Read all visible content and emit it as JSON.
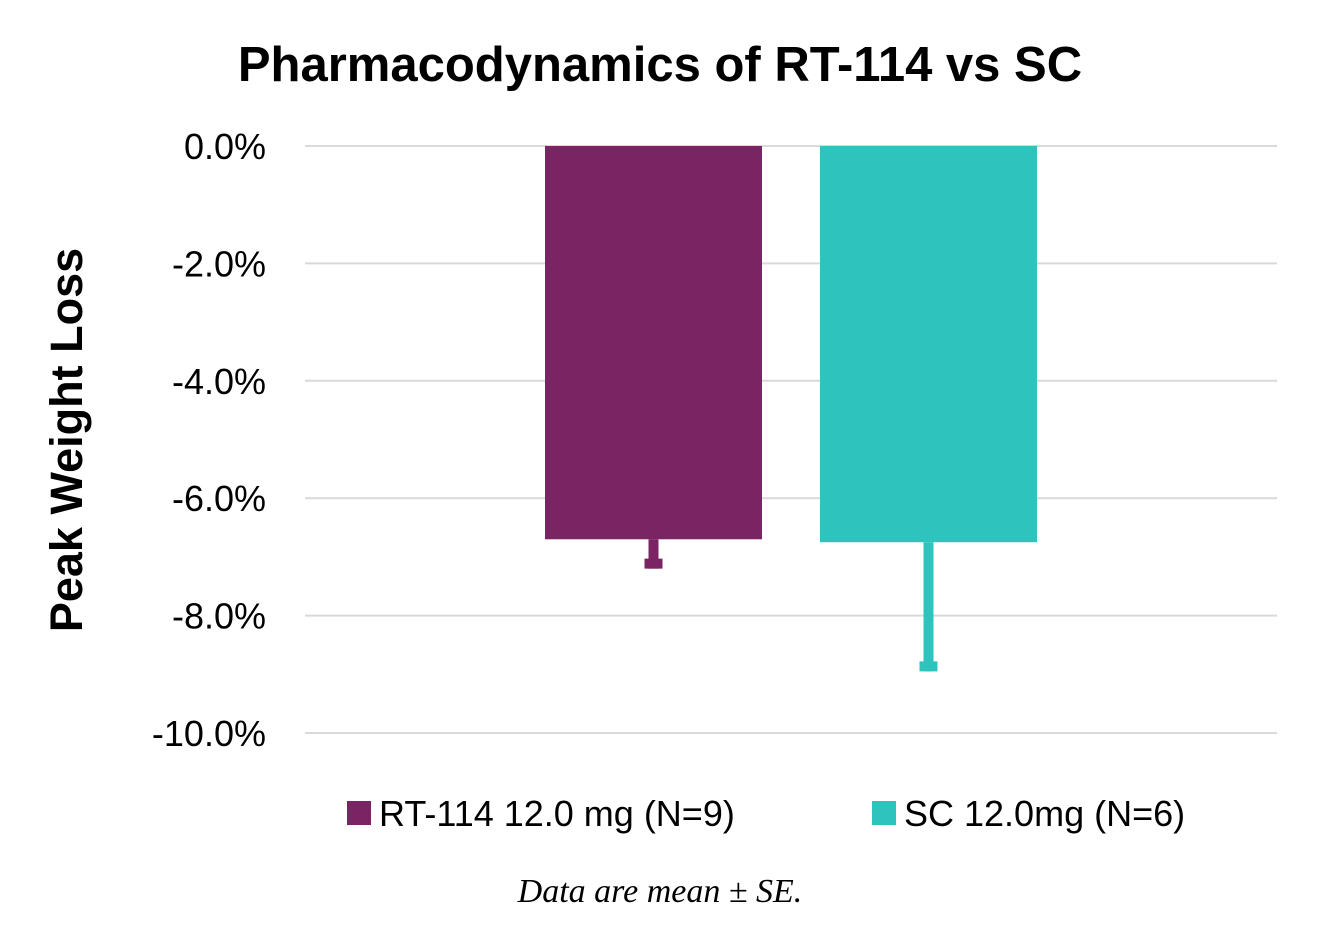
{
  "chart_data": {
    "type": "bar",
    "title": "Pharmacodynamics of RT-114 vs SC",
    "xlabel": "",
    "ylabel": "Peak Weight Loss",
    "ylim": [
      -10,
      0
    ],
    "y_unit": "%",
    "y_ticks": [
      0,
      -2,
      -4,
      -6,
      -8,
      -10
    ],
    "y_tick_labels": [
      "0.0%",
      "-2.0%",
      "-4.0%",
      "-6.0%",
      "-8.0%",
      "-10.0%"
    ],
    "grid": true,
    "legend_position": "bottom",
    "categories": [
      "RT-114 12.0 mg (N=9)",
      "SC 12.0mg (N=6)"
    ],
    "series": [
      {
        "name": "RT-114 12.0 mg (N=9)",
        "color": "#7a2463",
        "value": -6.7,
        "error": 0.5
      },
      {
        "name": "SC 12.0mg (N=6)",
        "color": "#2ec4bd",
        "value": -6.75,
        "error": 2.2
      }
    ],
    "footnote": "Data are mean ± SE."
  }
}
